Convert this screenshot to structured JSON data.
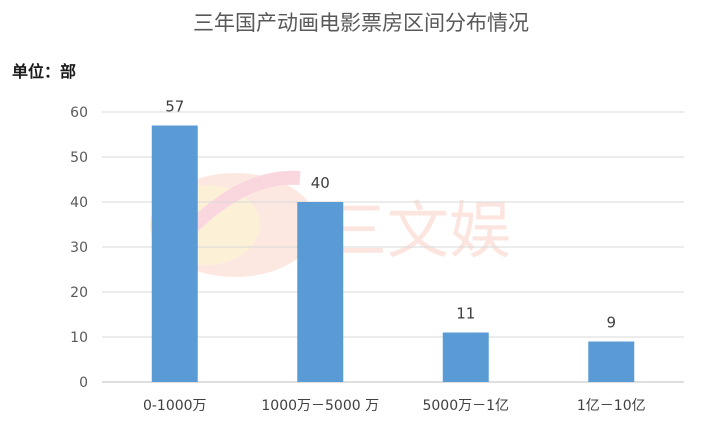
{
  "chart_data": {
    "type": "bar",
    "title": "三年国产动画电影票房区间分布情况",
    "unit_label": "单位：部",
    "categories": [
      "0-1000万",
      "1000万－5000 万",
      "5000万－1亿",
      "1亿－10亿"
    ],
    "values": [
      57,
      40,
      11,
      9
    ],
    "ylim": [
      0,
      60
    ],
    "yticks": [
      0,
      10,
      20,
      30,
      40,
      50,
      60
    ],
    "grid": true,
    "bar_color": "#5b9bd5",
    "watermark": "三文娱"
  }
}
